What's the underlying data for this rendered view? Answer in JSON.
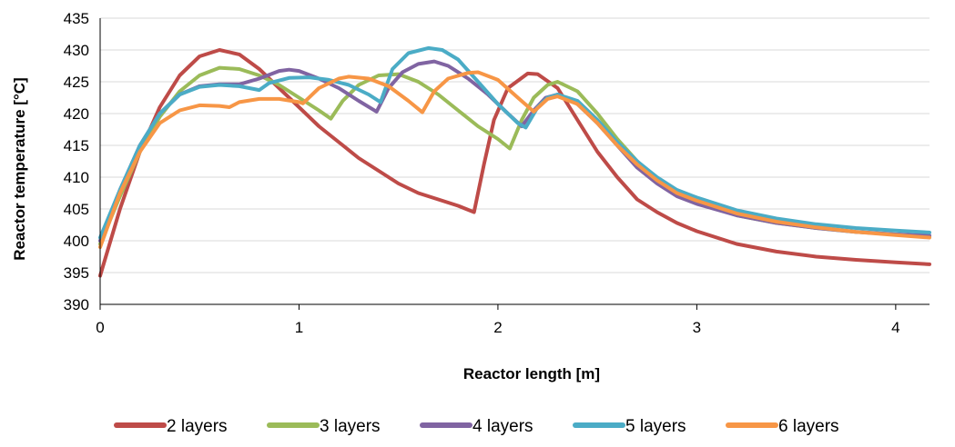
{
  "chart_data": {
    "type": "line",
    "title": "",
    "xlabel": "Reactor length [m]",
    "ylabel": "Reactor temperature [°C]",
    "xlim": [
      0,
      4.17
    ],
    "ylim": [
      390,
      435
    ],
    "x_ticks": [
      0,
      1,
      2,
      3,
      4
    ],
    "y_ticks": [
      390,
      395,
      400,
      405,
      410,
      415,
      420,
      425,
      430,
      435
    ],
    "grid": "horizontal",
    "legend_position": "bottom",
    "series": [
      {
        "name": "2 layers",
        "color": "#be4b48",
        "points": [
          [
            0,
            394.5
          ],
          [
            0.1,
            405
          ],
          [
            0.2,
            414
          ],
          [
            0.3,
            421
          ],
          [
            0.4,
            426
          ],
          [
            0.5,
            429
          ],
          [
            0.6,
            430
          ],
          [
            0.7,
            429.3
          ],
          [
            0.8,
            427
          ],
          [
            0.9,
            424
          ],
          [
            1.0,
            421
          ],
          [
            1.1,
            418
          ],
          [
            1.2,
            415.5
          ],
          [
            1.3,
            413
          ],
          [
            1.4,
            411
          ],
          [
            1.5,
            409
          ],
          [
            1.6,
            407.5
          ],
          [
            1.7,
            406.5
          ],
          [
            1.8,
            405.5
          ],
          [
            1.88,
            404.5
          ],
          [
            1.93,
            412
          ],
          [
            1.98,
            419
          ],
          [
            2.05,
            424
          ],
          [
            2.15,
            426.3
          ],
          [
            2.2,
            426.2
          ],
          [
            2.3,
            424
          ],
          [
            2.4,
            419
          ],
          [
            2.5,
            414
          ],
          [
            2.6,
            410
          ],
          [
            2.7,
            406.5
          ],
          [
            2.8,
            404.5
          ],
          [
            2.9,
            402.8
          ],
          [
            3.0,
            401.5
          ],
          [
            3.2,
            399.5
          ],
          [
            3.4,
            398.3
          ],
          [
            3.6,
            397.5
          ],
          [
            3.8,
            397
          ],
          [
            4.0,
            396.6
          ],
          [
            4.17,
            396.3
          ]
        ]
      },
      {
        "name": "3 layers",
        "color": "#9bbb59",
        "points": [
          [
            0,
            399.5
          ],
          [
            0.1,
            407
          ],
          [
            0.2,
            414
          ],
          [
            0.3,
            419.5
          ],
          [
            0.4,
            423.5
          ],
          [
            0.5,
            426
          ],
          [
            0.6,
            427.2
          ],
          [
            0.7,
            427
          ],
          [
            0.8,
            426
          ],
          [
            0.9,
            424.5
          ],
          [
            1.0,
            422.5
          ],
          [
            1.1,
            420.5
          ],
          [
            1.16,
            419.2
          ],
          [
            1.22,
            422
          ],
          [
            1.3,
            424.5
          ],
          [
            1.4,
            426
          ],
          [
            1.5,
            426.2
          ],
          [
            1.6,
            425
          ],
          [
            1.7,
            423
          ],
          [
            1.8,
            420.5
          ],
          [
            1.9,
            418
          ],
          [
            2.0,
            416
          ],
          [
            2.06,
            414.5
          ],
          [
            2.12,
            419
          ],
          [
            2.18,
            422.5
          ],
          [
            2.25,
            424.5
          ],
          [
            2.3,
            425
          ],
          [
            2.4,
            423.5
          ],
          [
            2.5,
            420
          ],
          [
            2.6,
            416
          ],
          [
            2.7,
            412.5
          ],
          [
            2.8,
            409.5
          ],
          [
            2.9,
            407.5
          ],
          [
            3.0,
            406
          ],
          [
            3.2,
            404
          ],
          [
            3.4,
            402.8
          ],
          [
            3.6,
            402
          ],
          [
            3.8,
            401.4
          ],
          [
            4.0,
            401
          ],
          [
            4.17,
            400.7
          ]
        ]
      },
      {
        "name": "4 layers",
        "color": "#8064a2",
        "points": [
          [
            0,
            400
          ],
          [
            0.1,
            408
          ],
          [
            0.2,
            415
          ],
          [
            0.3,
            420
          ],
          [
            0.4,
            423
          ],
          [
            0.5,
            424.3
          ],
          [
            0.6,
            424.6
          ],
          [
            0.7,
            424.6
          ],
          [
            0.8,
            425.5
          ],
          [
            0.9,
            426.7
          ],
          [
            0.95,
            426.9
          ],
          [
            1.0,
            426.7
          ],
          [
            1.1,
            425.5
          ],
          [
            1.2,
            424
          ],
          [
            1.3,
            422
          ],
          [
            1.39,
            420.3
          ],
          [
            1.45,
            424
          ],
          [
            1.52,
            426.5
          ],
          [
            1.6,
            427.8
          ],
          [
            1.68,
            428.2
          ],
          [
            1.75,
            427.5
          ],
          [
            1.85,
            425.5
          ],
          [
            1.95,
            423
          ],
          [
            2.05,
            420
          ],
          [
            2.12,
            418
          ],
          [
            2.18,
            420.5
          ],
          [
            2.24,
            422.5
          ],
          [
            2.3,
            423
          ],
          [
            2.4,
            421.5
          ],
          [
            2.5,
            418.5
          ],
          [
            2.6,
            415
          ],
          [
            2.7,
            411.5
          ],
          [
            2.8,
            409
          ],
          [
            2.9,
            407
          ],
          [
            3.0,
            405.8
          ],
          [
            3.2,
            404
          ],
          [
            3.4,
            402.8
          ],
          [
            3.6,
            402
          ],
          [
            3.8,
            401.4
          ],
          [
            4.0,
            401
          ],
          [
            4.17,
            400.8
          ]
        ]
      },
      {
        "name": "5 layers",
        "color": "#4bacc6",
        "points": [
          [
            0,
            400.5
          ],
          [
            0.1,
            408
          ],
          [
            0.2,
            415
          ],
          [
            0.3,
            420
          ],
          [
            0.4,
            423
          ],
          [
            0.5,
            424.2
          ],
          [
            0.6,
            424.5
          ],
          [
            0.7,
            424.3
          ],
          [
            0.8,
            423.7
          ],
          [
            0.85,
            424.8
          ],
          [
            0.95,
            425.6
          ],
          [
            1.05,
            425.7
          ],
          [
            1.15,
            425.3
          ],
          [
            1.25,
            424.5
          ],
          [
            1.35,
            423
          ],
          [
            1.41,
            421.8
          ],
          [
            1.47,
            427
          ],
          [
            1.55,
            429.5
          ],
          [
            1.65,
            430.3
          ],
          [
            1.72,
            430
          ],
          [
            1.8,
            428.5
          ],
          [
            1.9,
            425
          ],
          [
            2.0,
            421.5
          ],
          [
            2.1,
            418.5
          ],
          [
            2.14,
            417.8
          ],
          [
            2.2,
            421
          ],
          [
            2.25,
            422.5
          ],
          [
            2.3,
            423
          ],
          [
            2.4,
            422
          ],
          [
            2.5,
            419
          ],
          [
            2.6,
            415.5
          ],
          [
            2.7,
            412.5
          ],
          [
            2.8,
            410
          ],
          [
            2.9,
            408
          ],
          [
            3.0,
            406.8
          ],
          [
            3.2,
            404.8
          ],
          [
            3.4,
            403.5
          ],
          [
            3.6,
            402.6
          ],
          [
            3.8,
            402
          ],
          [
            4.0,
            401.6
          ],
          [
            4.17,
            401.3
          ]
        ]
      },
      {
        "name": "6 layers",
        "color": "#f79646",
        "points": [
          [
            0,
            399
          ],
          [
            0.1,
            407.5
          ],
          [
            0.2,
            414
          ],
          [
            0.3,
            418.5
          ],
          [
            0.4,
            420.5
          ],
          [
            0.5,
            421.3
          ],
          [
            0.6,
            421.2
          ],
          [
            0.65,
            421
          ],
          [
            0.7,
            421.8
          ],
          [
            0.8,
            422.3
          ],
          [
            0.9,
            422.3
          ],
          [
            1.0,
            421.8
          ],
          [
            1.02,
            421.6
          ],
          [
            1.1,
            424
          ],
          [
            1.2,
            425.5
          ],
          [
            1.25,
            425.8
          ],
          [
            1.35,
            425.5
          ],
          [
            1.45,
            424.3
          ],
          [
            1.55,
            422
          ],
          [
            1.62,
            420.2
          ],
          [
            1.68,
            423.5
          ],
          [
            1.75,
            425.5
          ],
          [
            1.85,
            426.4
          ],
          [
            1.9,
            426.5
          ],
          [
            2.0,
            425.3
          ],
          [
            2.1,
            422.5
          ],
          [
            2.18,
            420.3
          ],
          [
            2.25,
            422.3
          ],
          [
            2.3,
            422.7
          ],
          [
            2.4,
            421.5
          ],
          [
            2.5,
            418.5
          ],
          [
            2.6,
            415
          ],
          [
            2.7,
            412
          ],
          [
            2.8,
            409.5
          ],
          [
            2.9,
            407.5
          ],
          [
            3.0,
            406.3
          ],
          [
            3.2,
            404.3
          ],
          [
            3.4,
            403
          ],
          [
            3.6,
            402.1
          ],
          [
            3.8,
            401.4
          ],
          [
            4.0,
            400.9
          ],
          [
            4.17,
            400.5
          ]
        ]
      }
    ]
  }
}
